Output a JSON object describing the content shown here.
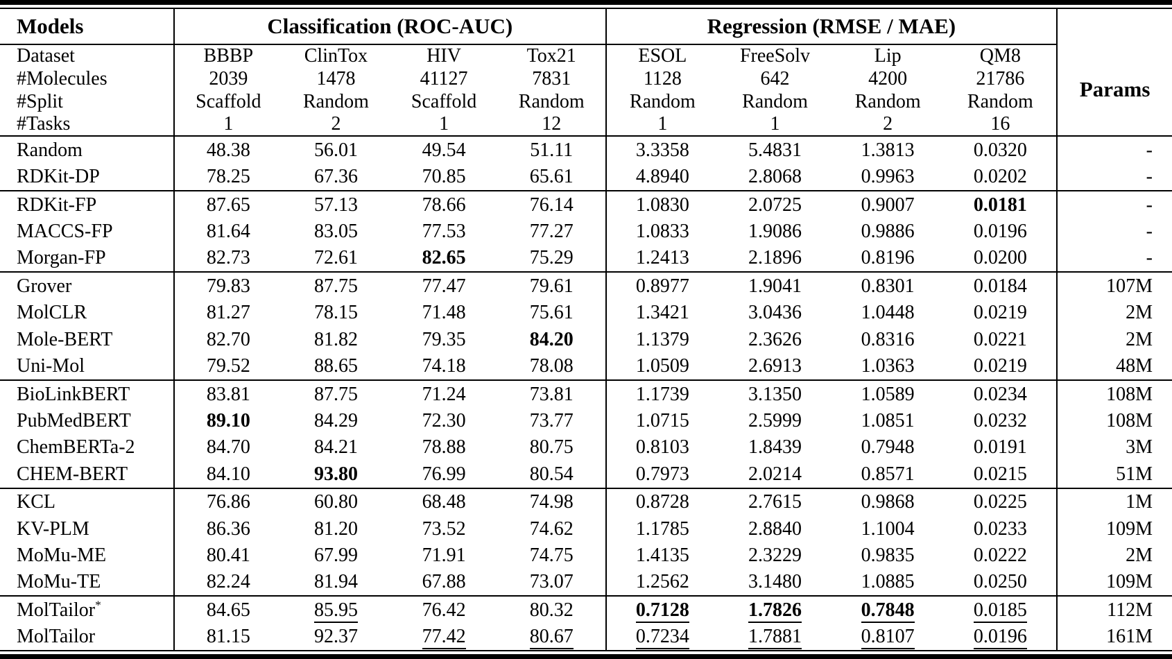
{
  "table": {
    "header": {
      "models_label": "Models",
      "classification_label": "Classification (ROC-AUC)",
      "regression_label": "Regression (RMSE / MAE)",
      "params_label": "Params"
    },
    "subheader": {
      "row_labels": [
        "Dataset",
        "#Molecules",
        "#Split",
        "#Tasks"
      ],
      "datasets": [
        "BBBP",
        "ClinTox",
        "HIV",
        "Tox21",
        "ESOL",
        "FreeSolv",
        "Lip",
        "QM8"
      ],
      "molecules": [
        "2039",
        "1478",
        "41127",
        "7831",
        "1128",
        "642",
        "4200",
        "21786"
      ],
      "split": [
        "Scaffold",
        "Random",
        "Scaffold",
        "Random",
        "Random",
        "Random",
        "Random",
        "Random"
      ],
      "tasks": [
        "1",
        "2",
        "1",
        "12",
        "1",
        "1",
        "2",
        "16"
      ]
    },
    "groups": [
      {
        "rows": [
          {
            "model": "Random",
            "cells": [
              {
                "v": "48.38"
              },
              {
                "v": "56.01"
              },
              {
                "v": "49.54"
              },
              {
                "v": "51.11"
              },
              {
                "v": "3.3358"
              },
              {
                "v": "5.4831"
              },
              {
                "v": "1.3813"
              },
              {
                "v": "0.0320"
              }
            ],
            "params": "-"
          },
          {
            "model": "RDKit-DP",
            "cells": [
              {
                "v": "78.25"
              },
              {
                "v": "67.36"
              },
              {
                "v": "70.85"
              },
              {
                "v": "65.61"
              },
              {
                "v": "4.8940"
              },
              {
                "v": "2.8068"
              },
              {
                "v": "0.9963"
              },
              {
                "v": "0.0202"
              }
            ],
            "params": "-"
          }
        ]
      },
      {
        "rows": [
          {
            "model": "RDKit-FP",
            "cells": [
              {
                "v": "87.65"
              },
              {
                "v": "57.13"
              },
              {
                "v": "78.66"
              },
              {
                "v": "76.14"
              },
              {
                "v": "1.0830"
              },
              {
                "v": "2.0725"
              },
              {
                "v": "0.9007"
              },
              {
                "v": "0.0181",
                "b": true
              }
            ],
            "params": "-"
          },
          {
            "model": "MACCS-FP",
            "cells": [
              {
                "v": "81.64"
              },
              {
                "v": "83.05"
              },
              {
                "v": "77.53"
              },
              {
                "v": "77.27"
              },
              {
                "v": "1.0833"
              },
              {
                "v": "1.9086"
              },
              {
                "v": "0.9886"
              },
              {
                "v": "0.0196"
              }
            ],
            "params": "-"
          },
          {
            "model": "Morgan-FP",
            "cells": [
              {
                "v": "82.73"
              },
              {
                "v": "72.61"
              },
              {
                "v": "82.65",
                "b": true
              },
              {
                "v": "75.29"
              },
              {
                "v": "1.2413"
              },
              {
                "v": "2.1896"
              },
              {
                "v": "0.8196"
              },
              {
                "v": "0.0200"
              }
            ],
            "params": "-"
          }
        ]
      },
      {
        "rows": [
          {
            "model": "Grover",
            "cells": [
              {
                "v": "79.83"
              },
              {
                "v": "87.75"
              },
              {
                "v": "77.47"
              },
              {
                "v": "79.61"
              },
              {
                "v": "0.8977"
              },
              {
                "v": "1.9041"
              },
              {
                "v": "0.8301"
              },
              {
                "v": "0.0184"
              }
            ],
            "params": "107M"
          },
          {
            "model": "MolCLR",
            "cells": [
              {
                "v": "81.27"
              },
              {
                "v": "78.15"
              },
              {
                "v": "71.48"
              },
              {
                "v": "75.61"
              },
              {
                "v": "1.3421"
              },
              {
                "v": "3.0436"
              },
              {
                "v": "1.0448"
              },
              {
                "v": "0.0219"
              }
            ],
            "params": "2M"
          },
          {
            "model": "Mole-BERT",
            "cells": [
              {
                "v": "82.70"
              },
              {
                "v": "81.82"
              },
              {
                "v": "79.35"
              },
              {
                "v": "84.20",
                "b": true
              },
              {
                "v": "1.1379"
              },
              {
                "v": "2.3626"
              },
              {
                "v": "0.8316"
              },
              {
                "v": "0.0221"
              }
            ],
            "params": "2M"
          },
          {
            "model": "Uni-Mol",
            "cells": [
              {
                "v": "79.52"
              },
              {
                "v": "88.65"
              },
              {
                "v": "74.18"
              },
              {
                "v": "78.08"
              },
              {
                "v": "1.0509"
              },
              {
                "v": "2.6913"
              },
              {
                "v": "1.0363"
              },
              {
                "v": "0.0219"
              }
            ],
            "params": "48M"
          }
        ]
      },
      {
        "rows": [
          {
            "model": "BioLinkBERT",
            "cells": [
              {
                "v": "83.81"
              },
              {
                "v": "87.75"
              },
              {
                "v": "71.24"
              },
              {
                "v": "73.81"
              },
              {
                "v": "1.1739"
              },
              {
                "v": "3.1350"
              },
              {
                "v": "1.0589"
              },
              {
                "v": "0.0234"
              }
            ],
            "params": "108M"
          },
          {
            "model": "PubMedBERT",
            "cells": [
              {
                "v": "89.10",
                "b": true
              },
              {
                "v": "84.29"
              },
              {
                "v": "72.30"
              },
              {
                "v": "73.77"
              },
              {
                "v": "1.0715"
              },
              {
                "v": "2.5999"
              },
              {
                "v": "1.0851"
              },
              {
                "v": "0.0232"
              }
            ],
            "params": "108M"
          },
          {
            "model": "ChemBERTa-2",
            "cells": [
              {
                "v": "84.70"
              },
              {
                "v": "84.21"
              },
              {
                "v": "78.88"
              },
              {
                "v": "80.75"
              },
              {
                "v": "0.8103"
              },
              {
                "v": "1.8439"
              },
              {
                "v": "0.7948"
              },
              {
                "v": "0.0191"
              }
            ],
            "params": "3M"
          },
          {
            "model": "CHEM-BERT",
            "cells": [
              {
                "v": "84.10"
              },
              {
                "v": "93.80",
                "b": true
              },
              {
                "v": "76.99"
              },
              {
                "v": "80.54"
              },
              {
                "v": "0.7973"
              },
              {
                "v": "2.0214"
              },
              {
                "v": "0.8571"
              },
              {
                "v": "0.0215"
              }
            ],
            "params": "51M"
          }
        ]
      },
      {
        "rows": [
          {
            "model": "KCL",
            "cells": [
              {
                "v": "76.86"
              },
              {
                "v": "60.80"
              },
              {
                "v": "68.48"
              },
              {
                "v": "74.98"
              },
              {
                "v": "0.8728"
              },
              {
                "v": "2.7615"
              },
              {
                "v": "0.9868"
              },
              {
                "v": "0.0225"
              }
            ],
            "params": "1M"
          },
          {
            "model": "KV-PLM",
            "cells": [
              {
                "v": "86.36"
              },
              {
                "v": "81.20"
              },
              {
                "v": "73.52"
              },
              {
                "v": "74.62"
              },
              {
                "v": "1.1785"
              },
              {
                "v": "2.8840"
              },
              {
                "v": "1.1004"
              },
              {
                "v": "0.0233"
              }
            ],
            "params": "109M"
          },
          {
            "model": "MoMu-ME",
            "cells": [
              {
                "v": "80.41"
              },
              {
                "v": "67.99"
              },
              {
                "v": "71.91"
              },
              {
                "v": "74.75"
              },
              {
                "v": "1.4135"
              },
              {
                "v": "2.3229"
              },
              {
                "v": "0.9835"
              },
              {
                "v": "0.0222"
              }
            ],
            "params": "2M"
          },
          {
            "model": "MoMu-TE",
            "cells": [
              {
                "v": "82.24"
              },
              {
                "v": "81.94"
              },
              {
                "v": "67.88"
              },
              {
                "v": "73.07"
              },
              {
                "v": "1.2562"
              },
              {
                "v": "3.1480"
              },
              {
                "v": "1.0885"
              },
              {
                "v": "0.0250"
              }
            ],
            "params": "109M"
          }
        ]
      },
      {
        "rows": [
          {
            "model": "MolTailor",
            "model_sup": "*",
            "cells": [
              {
                "v": "84.65"
              },
              {
                "v": "85.95",
                "u": true
              },
              {
                "v": "76.42"
              },
              {
                "v": "80.32"
              },
              {
                "v": "0.7128",
                "b": true,
                "u": true
              },
              {
                "v": "1.7826",
                "b": true,
                "u": true
              },
              {
                "v": "0.7848",
                "b": true,
                "u": true
              },
              {
                "v": "0.0185",
                "u": true
              }
            ],
            "params": "112M"
          },
          {
            "model": "MolTailor",
            "cells": [
              {
                "v": "81.15"
              },
              {
                "v": "92.37"
              },
              {
                "v": "77.42",
                "u": true
              },
              {
                "v": "80.67",
                "u": true
              },
              {
                "v": "0.7234",
                "u": true
              },
              {
                "v": "1.7881",
                "u": true
              },
              {
                "v": "0.8107",
                "u": true
              },
              {
                "v": "0.0196",
                "u": true
              }
            ],
            "params": "161M"
          }
        ]
      }
    ]
  }
}
